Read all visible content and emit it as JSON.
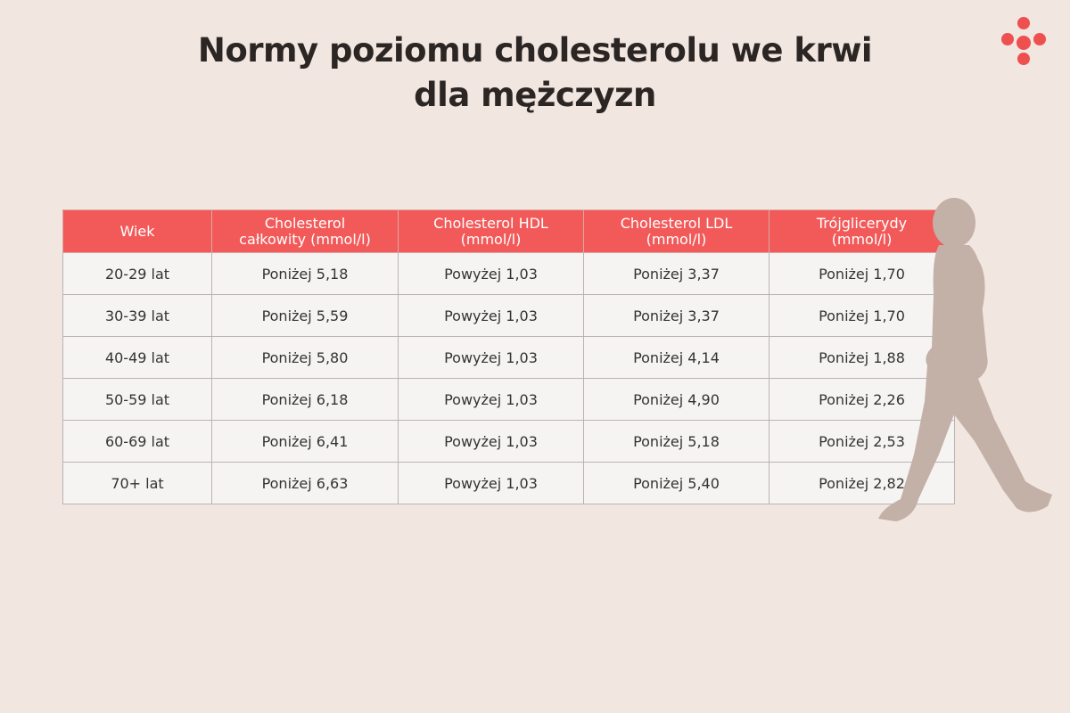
{
  "header": {
    "title": "Normy poziomu cholesterolu we krwi dla mężczyzn"
  },
  "table": {
    "columns": [
      "Wiek",
      "Cholesterol całkowity (mmol/l)",
      "Cholesterol HDL (mmol/l)",
      "Cholesterol LDL (mmol/l)",
      "Trójglicerydy (mmol/l)"
    ],
    "rows": [
      [
        "20-29 lat",
        "Poniżej 5,18",
        "Powyżej 1,03",
        "Poniżej 3,37",
        "Poniżej 1,70"
      ],
      [
        "30-39 lat",
        "Poniżej 5,59",
        "Powyżej 1,03",
        "Poniżej 3,37",
        "Poniżej 1,70"
      ],
      [
        "40-49 lat",
        "Poniżej 5,80",
        "Powyżej 1,03",
        "Poniżej 4,14",
        "Poniżej 1,88"
      ],
      [
        "50-59 lat",
        "Poniżej 6,18",
        "Powyżej 1,03",
        "Poniżej 4,90",
        "Poniżej 2,26"
      ],
      [
        "60-69 lat",
        "Poniżej 6,41",
        "Powyżej 1,03",
        "Poniżej 5,18",
        "Poniżej 2,53"
      ],
      [
        "70+ lat",
        "Poniżej 6,63",
        "Powyżej 1,03",
        "Poniżej 5,40",
        "Poniżej 2,82"
      ]
    ]
  }
}
